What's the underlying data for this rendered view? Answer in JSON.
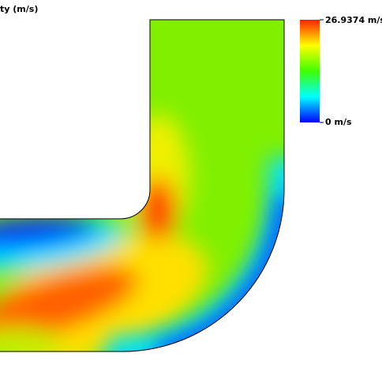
{
  "title": "ty (m/s)",
  "legend": {
    "max_label": "26.9374 m/s",
    "min_label": "0 m/s"
  }
}
